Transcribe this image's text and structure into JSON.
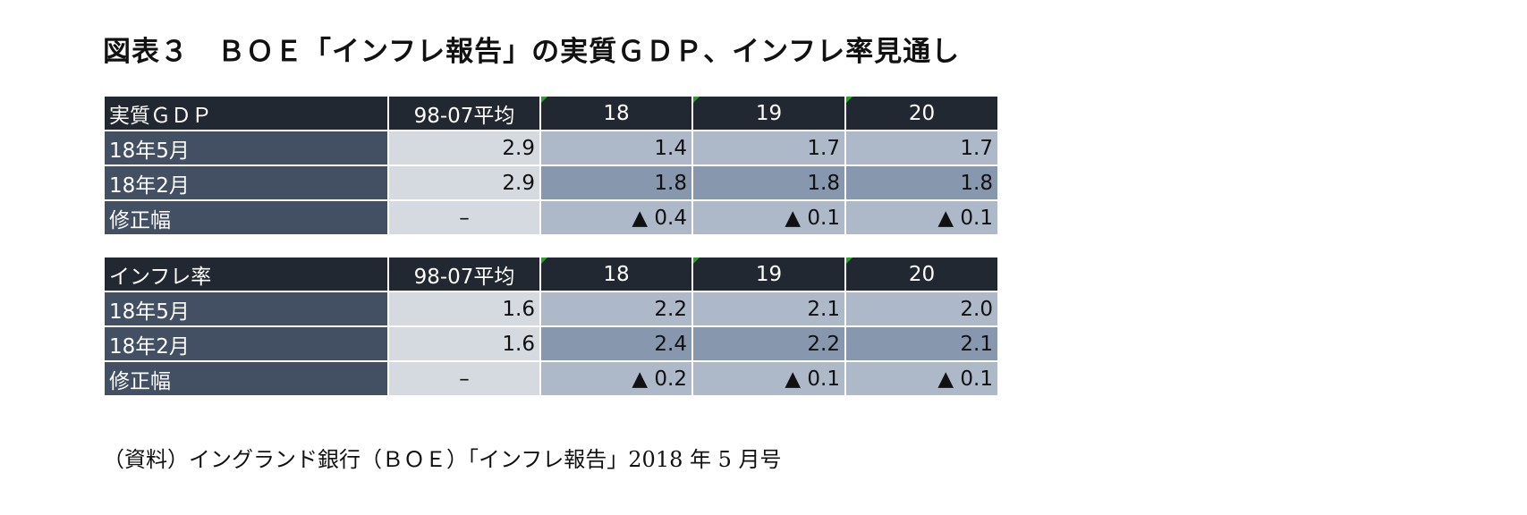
{
  "title": "図表３　ＢＯＥ「インフレ報告」の実質ＧＤＰ、インフレ率見通し",
  "tables": [
    {
      "header": [
        "実質ＧＤＰ",
        "98-07平均",
        "18",
        "19",
        "20"
      ],
      "rows": [
        [
          "18年5月",
          "2.9",
          "1.4",
          "1.7",
          "1.7"
        ],
        [
          "18年2月",
          "2.9",
          "1.8",
          "1.8",
          "1.8"
        ],
        [
          "修正幅",
          "–",
          "▲ 0.4",
          "▲ 0.1",
          "▲ 0.1"
        ]
      ]
    },
    {
      "header": [
        "インフレ率",
        "98-07平均",
        "18",
        "19",
        "20"
      ],
      "rows": [
        [
          "18年5月",
          "1.6",
          "2.2",
          "2.1",
          "2.0"
        ],
        [
          "18年2月",
          "1.6",
          "2.4",
          "2.2",
          "2.1"
        ],
        [
          "修正幅",
          "–",
          "▲ 0.2",
          "▲ 0.1",
          "▲ 0.1"
        ]
      ]
    }
  ],
  "source": "（資料）イングランド銀行（ＢＯＥ）「インフレ報告」2018 年 5 月号",
  "colors": {
    "header_bg": "#222831",
    "rowhead_bg": "#434f63",
    "avg_bg": "#d5dae1",
    "cell_light": "#adb8c8",
    "cell_mid": "#8797ae",
    "header_marker": "#2f9e2f"
  }
}
